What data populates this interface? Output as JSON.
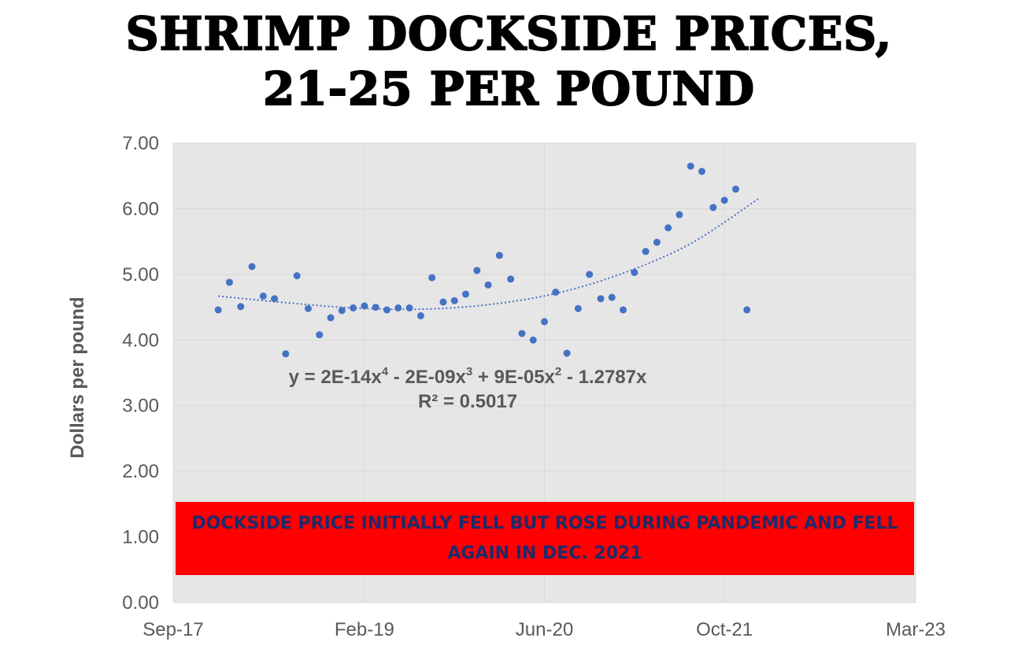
{
  "title_line1": "SHRIMP DOCKSIDE PRICES,",
  "title_line2": "21-25 PER POUND",
  "annotation": {
    "text": "DOCKSIDE PRICE INITIALLY FELL BUT ROSE DURING PANDEMIC AND FELL AGAIN IN DEC. 2021",
    "background": "#ff0000",
    "text_color": "#1f2a6b"
  },
  "trendline": {
    "equation_parts": [
      "y = 2E-14x",
      "4",
      " - 2E-09x",
      "3",
      " + 9E-05x",
      "2",
      " - 1.2787x"
    ],
    "r2": "R² = 0.5017",
    "type": "polynomial order 4",
    "style": "dotted",
    "color": "#4472c4",
    "points": [
      [
        "2018-01",
        4.67
      ],
      [
        "2018-07",
        4.57
      ],
      [
        "2019-01",
        4.49
      ],
      [
        "2019-07",
        4.47
      ],
      [
        "2020-01",
        4.54
      ],
      [
        "2020-07",
        4.71
      ],
      [
        "2021-01",
        5.02
      ],
      [
        "2021-07",
        5.47
      ],
      [
        "2022-01",
        6.15
      ]
    ]
  },
  "chart_data": {
    "type": "scatter",
    "title": "SHRIMP DOCKSIDE PRICES, 21-25 PER POUND",
    "xlabel": "",
    "ylabel": "Dollars per pound",
    "x_ticks": [
      "Sep-17",
      "Feb-19",
      "Jun-20",
      "Oct-21",
      "Mar-23"
    ],
    "y_ticks": [
      "0.00",
      "1.00",
      "2.00",
      "3.00",
      "4.00",
      "5.00",
      "6.00",
      "7.00"
    ],
    "xlim": [
      "2017-09",
      "2023-03"
    ],
    "ylim": [
      0,
      7
    ],
    "grid": true,
    "marker_color": "#4472c4",
    "background": "#e7e6e6",
    "series": [
      {
        "x": [
          "2018-01",
          "2018-02",
          "2018-03",
          "2018-04",
          "2018-05",
          "2018-06",
          "2018-07",
          "2018-08",
          "2018-09",
          "2018-10",
          "2018-11",
          "2018-12",
          "2019-01",
          "2019-02",
          "2019-03",
          "2019-04",
          "2019-05",
          "2019-06",
          "2019-07",
          "2019-08",
          "2019-09",
          "2019-10",
          "2019-11",
          "2019-12",
          "2020-01",
          "2020-02",
          "2020-03",
          "2020-04",
          "2020-05",
          "2020-06",
          "2020-07",
          "2020-08",
          "2020-09",
          "2020-10",
          "2020-11",
          "2020-12",
          "2021-01",
          "2021-02",
          "2021-03",
          "2021-04",
          "2021-05",
          "2021-06",
          "2021-07",
          "2021-08",
          "2021-09",
          "2021-10",
          "2021-11",
          "2021-12"
        ],
        "y": [
          4.46,
          4.88,
          4.51,
          5.12,
          4.67,
          4.63,
          3.79,
          4.98,
          4.48,
          4.08,
          4.34,
          4.45,
          4.49,
          4.52,
          4.5,
          4.46,
          4.49,
          4.49,
          4.37,
          4.95,
          4.58,
          4.6,
          4.7,
          5.06,
          4.84,
          5.29,
          4.93,
          4.1,
          4.0,
          4.28,
          4.73,
          3.8,
          4.48,
          5.0,
          4.63,
          4.65,
          4.46,
          5.03,
          5.35,
          5.49,
          5.71,
          5.91,
          6.65,
          6.57,
          6.02,
          6.13,
          6.3,
          4.46
        ]
      }
    ]
  }
}
